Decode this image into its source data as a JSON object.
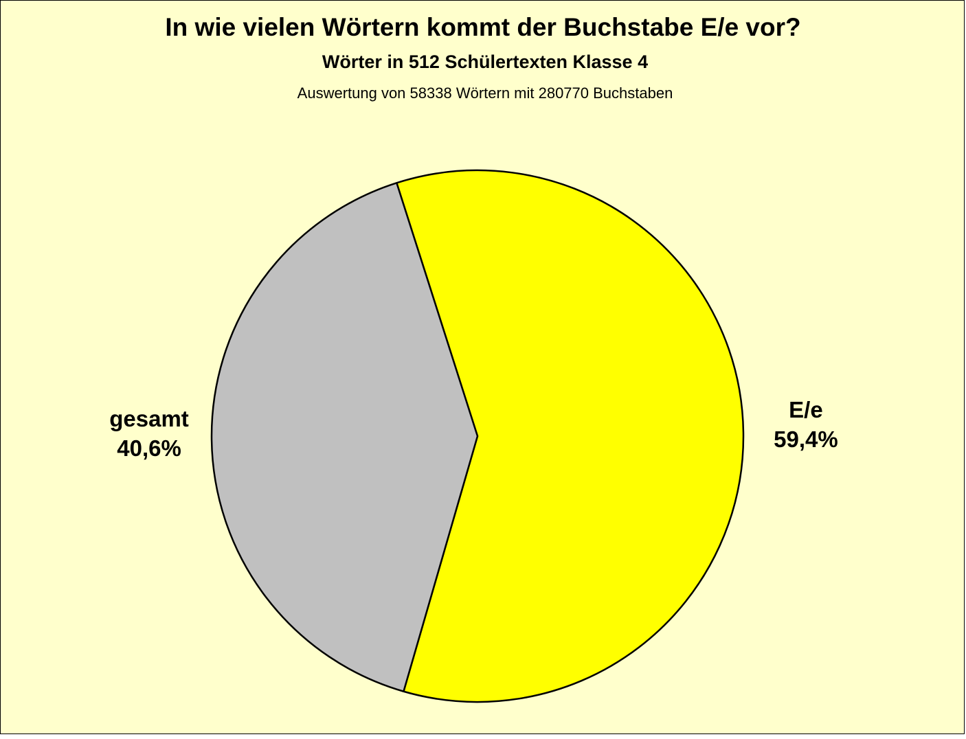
{
  "chart_data": {
    "type": "pie",
    "title": "In wie vielen Wörtern kommt der Buchstabe E/e vor?",
    "subtitle": "Wörter in 512 Schülertexten Klasse 4",
    "caption": "Auswertung von 58338 Wörtern mit 280770 Buchstaben",
    "categories": [
      "E/e",
      "gesamt"
    ],
    "values": [
      59.4,
      40.6
    ],
    "value_labels": [
      "59,4%",
      "40,6%"
    ],
    "colors": [
      "#ffff00",
      "#c0c0c0"
    ]
  }
}
